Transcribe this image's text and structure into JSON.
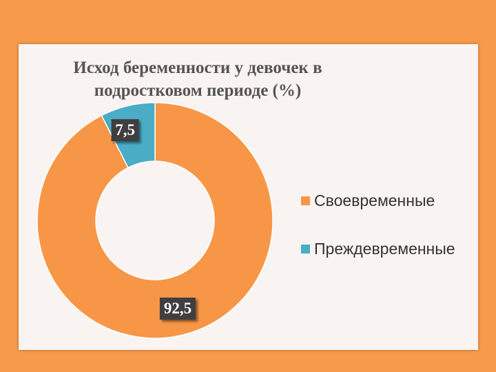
{
  "chart_data": {
    "type": "pie",
    "donut": true,
    "title": "Исход беременности у  девочек в подростковом периоде (%)",
    "categories": [
      "Своевременные",
      "Преждевременные"
    ],
    "values": [
      92.5,
      7.5
    ],
    "data_labels": [
      "92,5",
      "7,5"
    ],
    "colors": [
      "#f79646",
      "#4bacc6"
    ],
    "legend_position": "right"
  },
  "colors": {
    "background": "#f79a4b",
    "card": "#f9f4f1"
  }
}
